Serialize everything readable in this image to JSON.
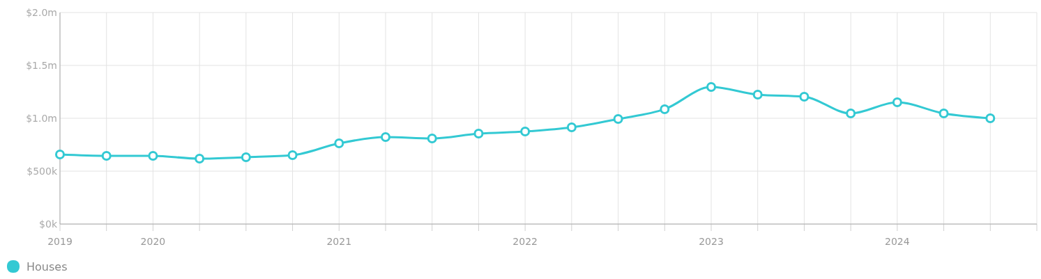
{
  "chart_data": {
    "type": "line",
    "categories": [
      "2019",
      null,
      "2020",
      null,
      null,
      null,
      "2021",
      null,
      null,
      null,
      "2022",
      null,
      null,
      null,
      "2023",
      null,
      null,
      null,
      "2024",
      null,
      null
    ],
    "series": [
      {
        "name": "Houses",
        "color": "#33c9d3",
        "values": [
          658000,
          645000,
          645000,
          618000,
          632000,
          651000,
          763000,
          822000,
          809000,
          855000,
          875000,
          914000,
          993000,
          1086000,
          1296000,
          1224000,
          1204000,
          1046000,
          1151000,
          1046000,
          1000000
        ]
      }
    ],
    "ylim": [
      0,
      2000000
    ],
    "yticks": [
      {
        "value": 0,
        "label": "$0k"
      },
      {
        "value": 500000,
        "label": "$500k"
      },
      {
        "value": 1000000,
        "label": "$1.0m"
      },
      {
        "value": 1500000,
        "label": "$1.5m"
      },
      {
        "value": 2000000,
        "label": "$2.0m"
      }
    ],
    "grid": true,
    "legend": "bottom left",
    "marker": "circle",
    "line_style": "solid"
  }
}
